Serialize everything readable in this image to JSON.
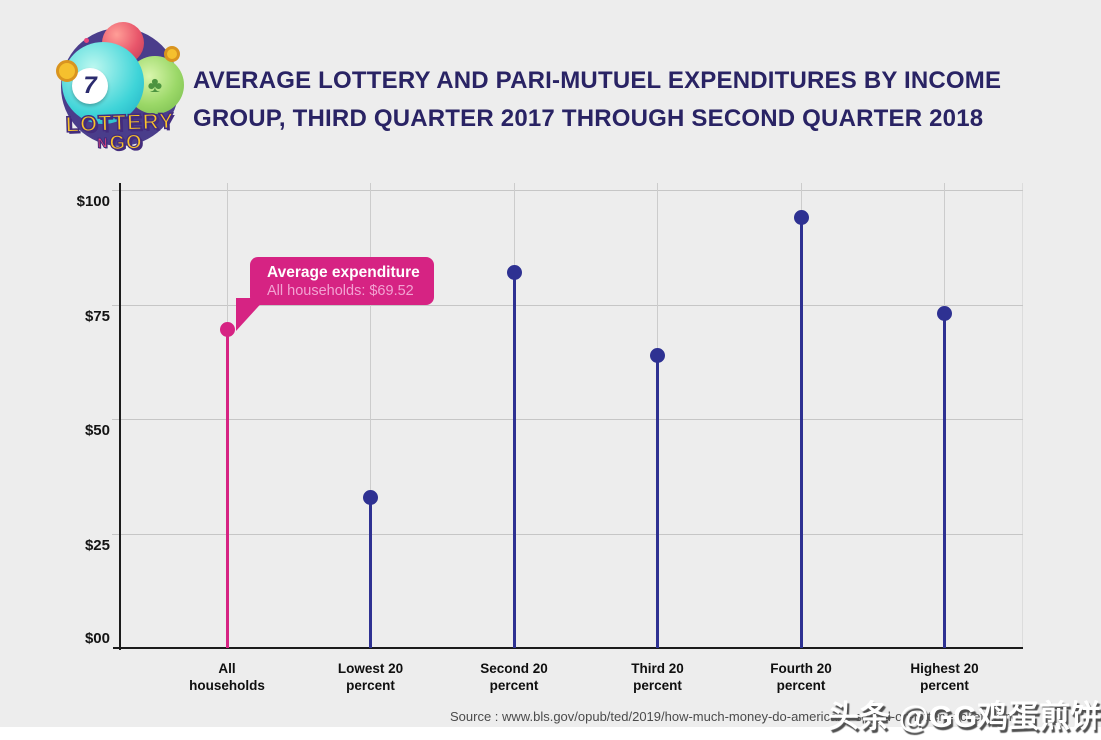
{
  "header": {
    "title_line1": "AVERAGE LOTTERY AND PARI-MUTUEL EXPENDITURES BY INCOME",
    "title_line2": "GROUP, THIRD QUARTER 2017 THROUGH SECOND QUARTER 2018"
  },
  "logo": {
    "brand_line1": "LOTTERY",
    "brand_n": "N",
    "brand_go": "GO",
    "ball_number": "7",
    "clover_glyph": "♣"
  },
  "footer": {
    "source": "Source : www.bls.gov/opub/ted/2019/how-much-money-do-americans-spend-on-lottery-tickets.html",
    "watermark": "头条 @GG鸡蛋煎饼"
  },
  "colors": {
    "background": "#ededed",
    "title": "#292364",
    "highlight": "#d62383",
    "series": "#2e3192",
    "grid": "#c8c8c8",
    "axis": "#1b1b1b"
  },
  "chart_data": {
    "type": "scatter",
    "style": "lollipop",
    "title": "Average lottery and pari-mutuel expenditures by income group, third quarter 2017 through second quarter 2018",
    "categories": [
      "All households",
      "Lowest 20 percent",
      "Second 20 percent",
      "Third 20 percent",
      "Fourth 20 percent",
      "Highest 20 percent"
    ],
    "category_label_lines": [
      [
        "All",
        "households"
      ],
      [
        "Lowest 20",
        "percent"
      ],
      [
        "Second 20",
        "percent"
      ],
      [
        "Third 20",
        "percent"
      ],
      [
        "Fourth 20",
        "percent"
      ],
      [
        "Highest 20",
        "percent"
      ]
    ],
    "values": [
      69.52,
      33,
      82,
      64,
      94,
      73
    ],
    "point_colors": [
      "#d62383",
      "#2e3192",
      "#2e3192",
      "#2e3192",
      "#2e3192",
      "#2e3192"
    ],
    "xlabel": "",
    "ylabel": "",
    "ylim": [
      0,
      105
    ],
    "y_ticks": [
      {
        "label": "$100",
        "value": 100
      },
      {
        "label": "$75",
        "value": 75
      },
      {
        "label": "$50",
        "value": 50
      },
      {
        "label": "$25",
        "value": 25
      },
      {
        "label": "$00",
        "value": 0
      }
    ],
    "grid": true,
    "legend": false,
    "annotation": {
      "target_category": "All households",
      "target_value": 69.52,
      "line1": "Average expenditure",
      "line2": "All households: $69.52"
    }
  }
}
